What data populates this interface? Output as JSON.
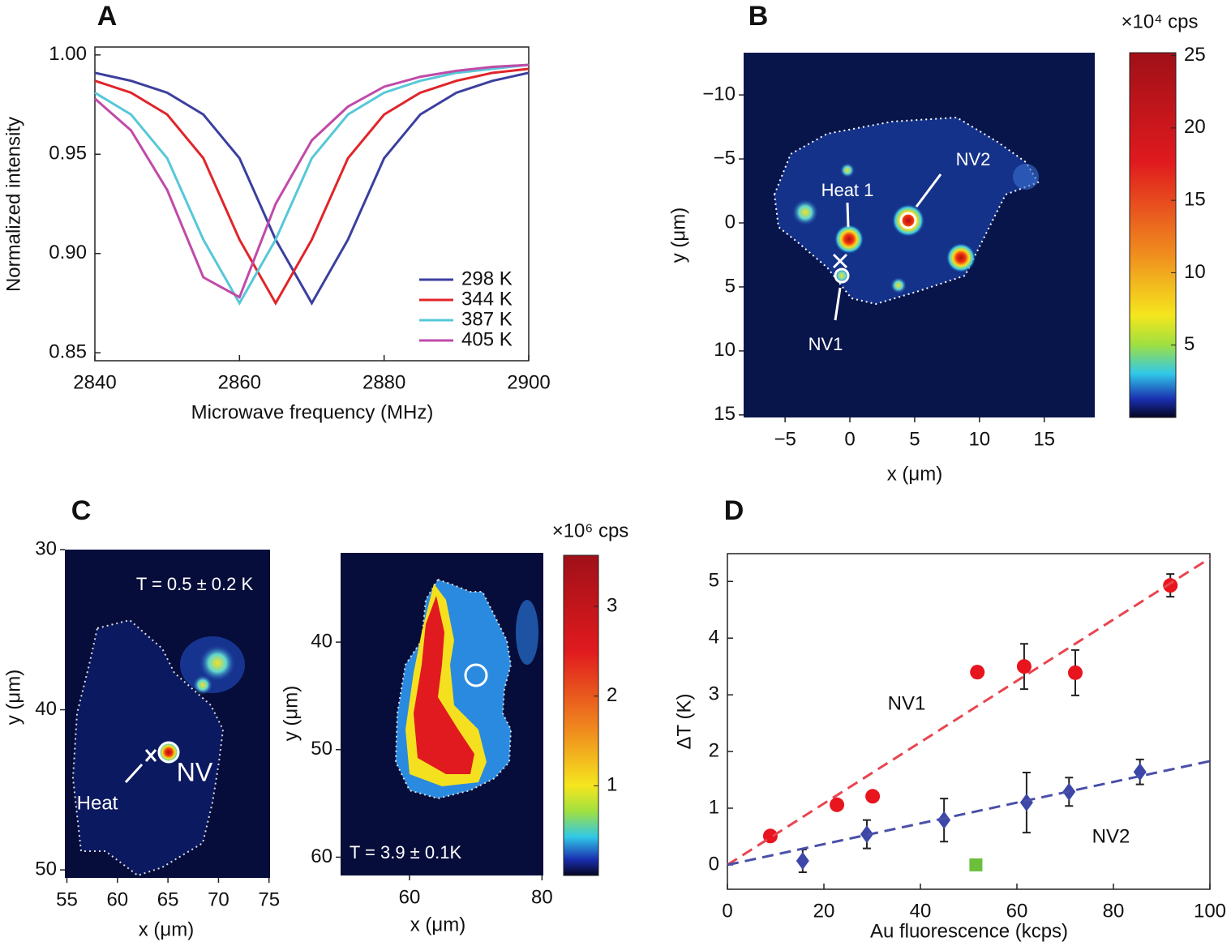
{
  "chart_data": [
    {
      "type": "line",
      "panel": "A",
      "xlabel": "Microwave frequency (MHz)",
      "ylabel": "Normalized intensity",
      "xlim": [
        2840,
        2900
      ],
      "ylim": [
        0.846,
        1.004
      ],
      "xticks": [
        2840,
        2860,
        2880,
        2900
      ],
      "yticks": [
        {
          "value": 1,
          "label": "1.00"
        },
        0.95,
        {
          "value": 0.9,
          "label": "0.90"
        },
        0.85
      ],
      "legend": "lower right",
      "x": [
        2840,
        2845,
        2850,
        2855,
        2860,
        2865,
        2870,
        2875,
        2880,
        2885,
        2890,
        2895,
        2900
      ],
      "series": [
        {
          "name": "298 K",
          "color": "#3b3f9e",
          "values": [
            0.991,
            0.987,
            0.981,
            0.97,
            0.948,
            0.907,
            0.875,
            0.907,
            0.948,
            0.97,
            0.981,
            0.987,
            0.991
          ]
        },
        {
          "name": "344 K",
          "color": "#e0252a",
          "values": [
            0.987,
            0.981,
            0.97,
            0.948,
            0.907,
            0.875,
            0.907,
            0.948,
            0.97,
            0.981,
            0.987,
            0.991,
            0.993
          ]
        },
        {
          "name": "387 K",
          "color": "#56c8d8",
          "values": [
            0.981,
            0.97,
            0.948,
            0.907,
            0.875,
            0.907,
            0.948,
            0.97,
            0.981,
            0.987,
            0.991,
            0.993,
            0.995
          ]
        },
        {
          "name": "405 K",
          "color": "#c04aa8",
          "values": [
            0.978,
            0.962,
            0.932,
            0.888,
            0.878,
            0.925,
            0.957,
            0.974,
            0.984,
            0.989,
            0.992,
            0.994,
            0.995
          ]
        }
      ]
    },
    {
      "type": "heatmap",
      "panel": "B",
      "xlabel": "x (μm)",
      "ylabel": "y (μm)",
      "xlim": [
        -8.2,
        18.9
      ],
      "ylim": [
        -13.3,
        15.2
      ],
      "y_reversed": true,
      "xticks": [
        {
          "value": -5,
          "label": "−5"
        },
        0,
        5,
        10,
        15
      ],
      "yticks": [
        {
          "value": -10,
          "label": "−10"
        },
        {
          "value": -5,
          "label": "−5"
        },
        0,
        5,
        10,
        15
      ],
      "colorbar": {
        "label": "×10⁴ cps",
        "lim": [
          0,
          25.2
        ],
        "ticks": [
          5,
          10,
          15,
          20,
          25
        ]
      },
      "annotations": [
        "Heat 1",
        "NV2",
        "NV1"
      ]
    },
    {
      "type": "heatmap",
      "panel": "C",
      "xlabel": "x (μm)",
      "ylabel": "y (μm)",
      "xlim": [
        54.8,
        75.1
      ],
      "ylim": [
        30,
        50.5
      ],
      "y_reversed": true,
      "xticks": [
        55,
        60,
        65,
        70,
        75
      ],
      "yticks": [
        30,
        40,
        50
      ],
      "annotations": [
        "T = 0.5 ± 0.2 K",
        "Heat",
        "NV"
      ]
    },
    {
      "type": "heatmap",
      "xlabel": "x (μm)",
      "ylabel": "y (μm)",
      "xlim": [
        49.6,
        80.2
      ],
      "ylim": [
        31.7,
        61.7
      ],
      "y_reversed": true,
      "xticks": [
        60,
        80
      ],
      "yticks": [
        40,
        50,
        60
      ],
      "colorbar": {
        "label": "×10⁶ cps",
        "lim": [
          0,
          3.57
        ],
        "ticks": [
          1,
          2,
          3
        ]
      },
      "annotations": [
        "T = 3.9 ± 0.1K"
      ]
    },
    {
      "type": "scatter",
      "panel": "D",
      "xlabel": "Au fluorescence (kcps)",
      "ylabel": "ΔT (K)",
      "xlim": [
        0,
        100
      ],
      "ylim": [
        -0.43,
        5.49
      ],
      "xticks": [
        0,
        20,
        40,
        60,
        80,
        100
      ],
      "yticks": [
        0,
        1,
        2,
        3,
        4,
        5
      ],
      "series": [
        {
          "name": "NV1",
          "color": "#e8141e",
          "marker": "circle",
          "x": [
            8.9,
            22.7,
            30.1,
            51.8,
            61.5,
            72.1,
            91.8
          ],
          "values": [
            0.51,
            1.06,
            1.21,
            3.4,
            3.5,
            3.39,
            4.93
          ],
          "errors": [
            0.05,
            0.05,
            0.05,
            0.1,
            0.4,
            0.4,
            0.2
          ]
        },
        {
          "name": "NV2",
          "color": "#3c47a8",
          "marker": "diamond",
          "x": [
            15.6,
            28.9,
            44.9,
            62,
            70.8,
            85.5
          ],
          "values": [
            0.07,
            0.54,
            0.79,
            1.1,
            1.29,
            1.64
          ],
          "errors": [
            0.2,
            0.25,
            0.38,
            0.53,
            0.25,
            0.22
          ]
        },
        {
          "color": "#6bbf3a",
          "marker": "square",
          "x": [
            51.5
          ],
          "values": [
            0
          ]
        },
        {
          "color": "#e8454f",
          "style": "dashed",
          "x": [
            0,
            100
          ],
          "values": [
            0,
            5.41
          ]
        },
        {
          "color": "#4a4fa8",
          "style": "dashed",
          "x": [
            0,
            100
          ],
          "values": [
            0,
            1.83
          ]
        }
      ]
    }
  ]
}
